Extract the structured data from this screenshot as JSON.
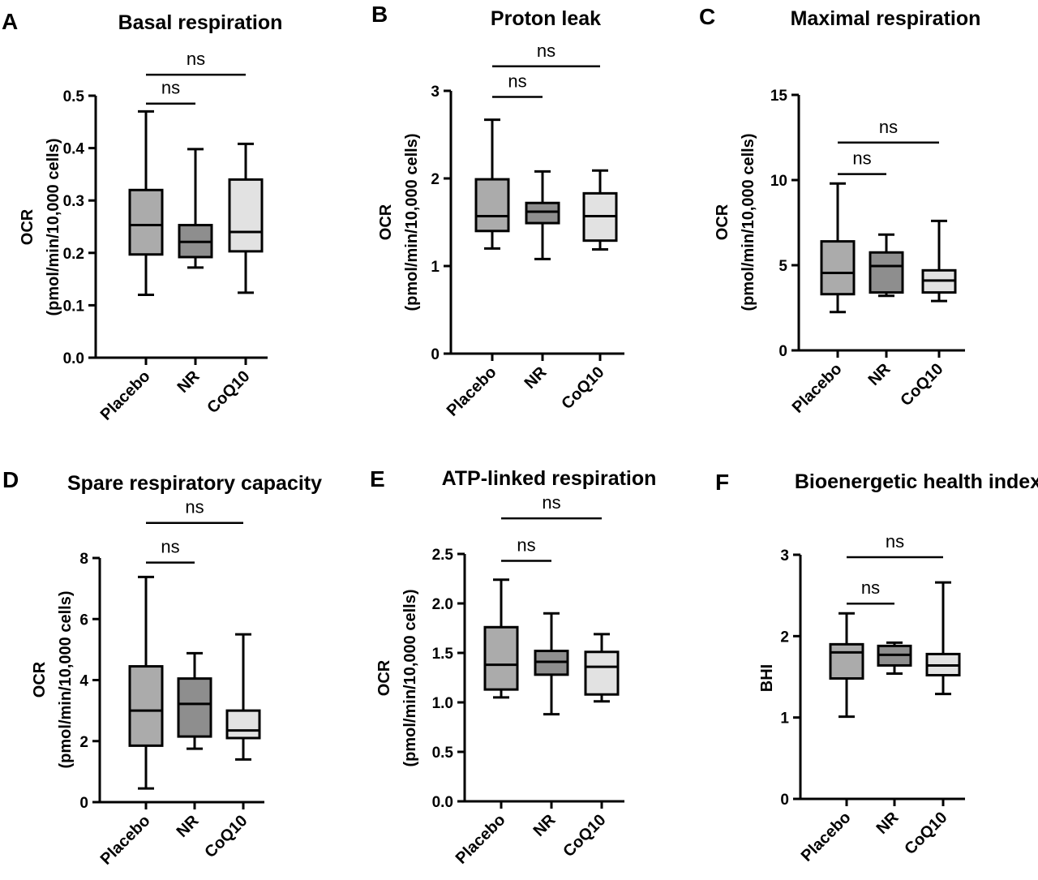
{
  "chart_data": [
    {
      "panel": "A",
      "type": "box",
      "title": "Basal respiration",
      "ylabel_lines": [
        "OCR",
        "(pmol/min/10,000 cells)"
      ],
      "ylim": [
        0,
        0.5
      ],
      "yticks": [
        0.0,
        0.1,
        0.2,
        0.3,
        0.4,
        0.5
      ],
      "ytick_labels": [
        "0.0",
        "0.1",
        "0.2",
        "0.3",
        "0.4",
        "0.5"
      ],
      "categories": [
        "Placebo",
        "NR",
        "CoQ10"
      ],
      "boxes": [
        {
          "name": "Placebo",
          "min": 0.12,
          "q1": 0.197,
          "median": 0.253,
          "q3": 0.32,
          "max": 0.47
        },
        {
          "name": "NR",
          "min": 0.172,
          "q1": 0.192,
          "median": 0.221,
          "q3": 0.253,
          "max": 0.398
        },
        {
          "name": "CoQ10",
          "min": 0.124,
          "q1": 0.203,
          "median": 0.24,
          "q3": 0.34,
          "max": 0.408
        }
      ],
      "comparisons": [
        {
          "from": "Placebo",
          "to": "NR",
          "label": "ns",
          "level": 0.485
        },
        {
          "from": "Placebo",
          "to": "CoQ10",
          "label": "ns",
          "level": 0.54
        }
      ]
    },
    {
      "panel": "B",
      "type": "box",
      "title": "Proton leak",
      "ylabel_lines": [
        "OCR",
        "(pmol/min/10,000 cells)"
      ],
      "ylim": [
        0,
        3
      ],
      "yticks": [
        0,
        1,
        2,
        3
      ],
      "ytick_labels": [
        "0",
        "1",
        "2",
        "3"
      ],
      "categories": [
        "Placebo",
        "NR",
        "CoQ10"
      ],
      "boxes": [
        {
          "name": "Placebo",
          "min": 1.2,
          "q1": 1.4,
          "median": 1.57,
          "q3": 1.99,
          "max": 2.67
        },
        {
          "name": "NR",
          "min": 1.08,
          "q1": 1.49,
          "median": 1.62,
          "q3": 1.72,
          "max": 2.08
        },
        {
          "name": "CoQ10",
          "min": 1.19,
          "q1": 1.29,
          "median": 1.57,
          "q3": 1.83,
          "max": 2.09
        }
      ],
      "comparisons": [
        {
          "from": "Placebo",
          "to": "NR",
          "label": "ns",
          "level": 2.93
        },
        {
          "from": "Placebo",
          "to": "CoQ10",
          "label": "ns",
          "level": 3.28
        }
      ]
    },
    {
      "panel": "C",
      "type": "box",
      "title": "Maximal respiration",
      "ylabel_lines": [
        "OCR",
        "(pmol/min/10,000 cells)"
      ],
      "ylim": [
        0,
        15
      ],
      "yticks": [
        0,
        5,
        10,
        15
      ],
      "ytick_labels": [
        "0",
        "5",
        "10",
        "15"
      ],
      "categories": [
        "Placebo",
        "NR",
        "CoQ10"
      ],
      "boxes": [
        {
          "name": "Placebo",
          "min": 2.25,
          "q1": 3.3,
          "median": 4.55,
          "q3": 6.4,
          "max": 9.8
        },
        {
          "name": "NR",
          "min": 3.2,
          "q1": 3.4,
          "median": 4.95,
          "q3": 5.75,
          "max": 6.8
        },
        {
          "name": "CoQ10",
          "min": 2.9,
          "q1": 3.4,
          "median": 4.1,
          "q3": 4.7,
          "max": 7.6
        }
      ],
      "comparisons": [
        {
          "from": "Placebo",
          "to": "NR",
          "label": "ns",
          "level": 10.35
        },
        {
          "from": "Placebo",
          "to": "CoQ10",
          "label": "ns",
          "level": 12.2
        }
      ]
    },
    {
      "panel": "D",
      "type": "box",
      "title": "Spare respiratory capacity",
      "ylabel_lines": [
        "OCR",
        "(pmol/min/10,000 cells)"
      ],
      "ylim": [
        0,
        8
      ],
      "yticks": [
        0,
        2,
        4,
        6,
        8
      ],
      "ytick_labels": [
        "0",
        "2",
        "4",
        "6",
        "8"
      ],
      "categories": [
        "Placebo",
        "NR",
        "CoQ10"
      ],
      "boxes": [
        {
          "name": "Placebo",
          "min": 0.45,
          "q1": 1.85,
          "median": 3.0,
          "q3": 4.45,
          "max": 7.38
        },
        {
          "name": "NR",
          "min": 1.75,
          "q1": 2.15,
          "median": 3.22,
          "q3": 4.05,
          "max": 4.88
        },
        {
          "name": "CoQ10",
          "min": 1.4,
          "q1": 2.1,
          "median": 2.35,
          "q3": 3.0,
          "max": 5.5
        }
      ],
      "comparisons": [
        {
          "from": "Placebo",
          "to": "NR",
          "label": "ns",
          "level": 7.85
        },
        {
          "from": "Placebo",
          "to": "CoQ10",
          "label": "ns",
          "level": 9.15
        }
      ]
    },
    {
      "panel": "E",
      "type": "box",
      "title": "ATP-linked respiration",
      "ylabel_lines": [
        "OCR",
        "(pmol/min/10,000 cells)"
      ],
      "ylim": [
        0,
        2.5
      ],
      "yticks": [
        0.0,
        0.5,
        1.0,
        1.5,
        2.0,
        2.5
      ],
      "ytick_labels": [
        "0.0",
        "0.5",
        "1.0",
        "1.5",
        "2.0",
        "2.5"
      ],
      "categories": [
        "Placebo",
        "NR",
        "CoQ10"
      ],
      "boxes": [
        {
          "name": "Placebo",
          "min": 1.05,
          "q1": 1.13,
          "median": 1.38,
          "q3": 1.76,
          "max": 2.24
        },
        {
          "name": "NR",
          "min": 0.88,
          "q1": 1.28,
          "median": 1.41,
          "q3": 1.52,
          "max": 1.9
        },
        {
          "name": "CoQ10",
          "min": 1.01,
          "q1": 1.08,
          "median": 1.36,
          "q3": 1.51,
          "max": 1.69
        }
      ],
      "comparisons": [
        {
          "from": "Placebo",
          "to": "NR",
          "label": "ns",
          "level": 2.43
        },
        {
          "from": "Placebo",
          "to": "CoQ10",
          "label": "ns",
          "level": 2.86
        }
      ]
    },
    {
      "panel": "F",
      "type": "box",
      "title": "Bioenergetic health index",
      "ylabel_lines": [
        "BHI"
      ],
      "ylim": [
        0,
        3
      ],
      "yticks": [
        0,
        1,
        2,
        3
      ],
      "ytick_labels": [
        "0",
        "1",
        "2",
        "3"
      ],
      "categories": [
        "Placebo",
        "NR",
        "CoQ10"
      ],
      "boxes": [
        {
          "name": "Placebo",
          "min": 1.01,
          "q1": 1.48,
          "median": 1.8,
          "q3": 1.9,
          "max": 2.28
        },
        {
          "name": "NR",
          "min": 1.54,
          "q1": 1.64,
          "median": 1.77,
          "q3": 1.88,
          "max": 1.92
        },
        {
          "name": "CoQ10",
          "min": 1.29,
          "q1": 1.52,
          "median": 1.64,
          "q3": 1.78,
          "max": 2.66
        }
      ],
      "comparisons": [
        {
          "from": "Placebo",
          "to": "NR",
          "label": "ns",
          "level": 2.4
        },
        {
          "from": "Placebo",
          "to": "CoQ10",
          "label": "ns",
          "level": 2.97
        }
      ]
    }
  ],
  "box_fill_colors": [
    "#ababab",
    "#8e8e8e",
    "#e2e2e2"
  ],
  "ink_color": "#000000"
}
